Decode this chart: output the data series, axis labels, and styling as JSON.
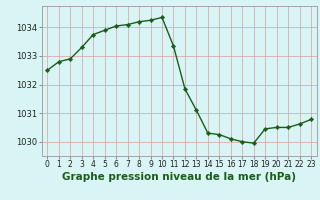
{
  "x": [
    0,
    1,
    2,
    3,
    4,
    5,
    6,
    7,
    8,
    9,
    10,
    11,
    12,
    13,
    14,
    15,
    16,
    17,
    18,
    19,
    20,
    21,
    22,
    23
  ],
  "y": [
    1032.5,
    1032.8,
    1032.9,
    1033.3,
    1033.75,
    1033.9,
    1034.05,
    1034.1,
    1034.2,
    1034.25,
    1034.35,
    1033.35,
    1031.85,
    1031.1,
    1030.3,
    1030.25,
    1030.1,
    1030.0,
    1029.95,
    1030.45,
    1030.5,
    1030.5,
    1030.62,
    1030.78
  ],
  "line_color": "#1a5e1a",
  "marker": "D",
  "marker_size": 2.2,
  "line_width": 1.0,
  "bg_color": "#d8f4f4",
  "plot_bg_color": "#d8f4f4",
  "grid_color": "#d8a0a0",
  "xlabel": "Graphe pression niveau de la mer (hPa)",
  "xlabel_fontsize": 7.5,
  "xlabel_color": "#1a5e1a",
  "ylabel_ticks": [
    1030,
    1031,
    1032,
    1033,
    1034
  ],
  "xtick_labels": [
    "0",
    "1",
    "2",
    "3",
    "4",
    "5",
    "6",
    "7",
    "8",
    "9",
    "10",
    "11",
    "12",
    "13",
    "14",
    "15",
    "16",
    "17",
    "18",
    "19",
    "20",
    "21",
    "22",
    "23"
  ],
  "ylim": [
    1029.5,
    1034.75
  ],
  "xlim": [
    -0.5,
    23.5
  ],
  "tick_fontsize": 5.5,
  "ytick_fontsize": 6.0
}
